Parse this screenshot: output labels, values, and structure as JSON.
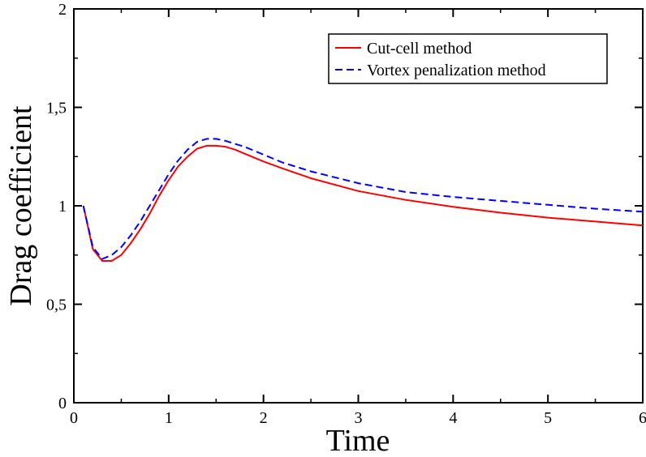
{
  "chart_data": {
    "type": "line",
    "title": "",
    "xlabel": "Time",
    "ylabel": "Drag coefficient",
    "xlim": [
      0,
      6
    ],
    "ylim": [
      0,
      2
    ],
    "x_ticks": [
      0,
      1,
      2,
      3,
      4,
      5,
      6
    ],
    "x_tick_labels": [
      "0",
      "1",
      "2",
      "3",
      "4",
      "5",
      "6"
    ],
    "y_ticks": [
      0,
      0.5,
      1,
      1.5,
      2
    ],
    "y_tick_labels": [
      "0",
      "0,5",
      "1",
      "1,5",
      "2"
    ],
    "grid": false,
    "legend_position": "top-right",
    "series": [
      {
        "name": "Cut-cell method",
        "color": "#ff0000",
        "dash": "solid",
        "x": [
          0.1,
          0.2,
          0.3,
          0.4,
          0.5,
          0.6,
          0.7,
          0.8,
          0.9,
          1.0,
          1.1,
          1.2,
          1.3,
          1.4,
          1.5,
          1.6,
          1.7,
          1.8,
          2.0,
          2.2,
          2.5,
          3.0,
          3.5,
          4.0,
          4.5,
          5.0,
          5.5,
          6.0
        ],
        "y": [
          1.0,
          0.78,
          0.72,
          0.72,
          0.75,
          0.81,
          0.88,
          0.96,
          1.05,
          1.13,
          1.2,
          1.25,
          1.29,
          1.305,
          1.305,
          1.3,
          1.285,
          1.265,
          1.225,
          1.19,
          1.14,
          1.075,
          1.03,
          0.995,
          0.965,
          0.94,
          0.92,
          0.9
        ]
      },
      {
        "name": "Vortex penalization method",
        "color": "#0000ff",
        "dash": "dashed",
        "x": [
          0.1,
          0.2,
          0.3,
          0.4,
          0.5,
          0.6,
          0.7,
          0.8,
          0.9,
          1.0,
          1.1,
          1.2,
          1.3,
          1.4,
          1.5,
          1.6,
          1.7,
          1.8,
          2.0,
          2.2,
          2.5,
          3.0,
          3.5,
          4.0,
          4.5,
          5.0,
          5.5,
          6.0
        ],
        "y": [
          1.0,
          0.79,
          0.73,
          0.75,
          0.79,
          0.85,
          0.92,
          1.0,
          1.08,
          1.16,
          1.23,
          1.285,
          1.325,
          1.34,
          1.34,
          1.33,
          1.315,
          1.3,
          1.26,
          1.22,
          1.175,
          1.115,
          1.07,
          1.045,
          1.025,
          1.005,
          0.985,
          0.97
        ]
      }
    ]
  }
}
